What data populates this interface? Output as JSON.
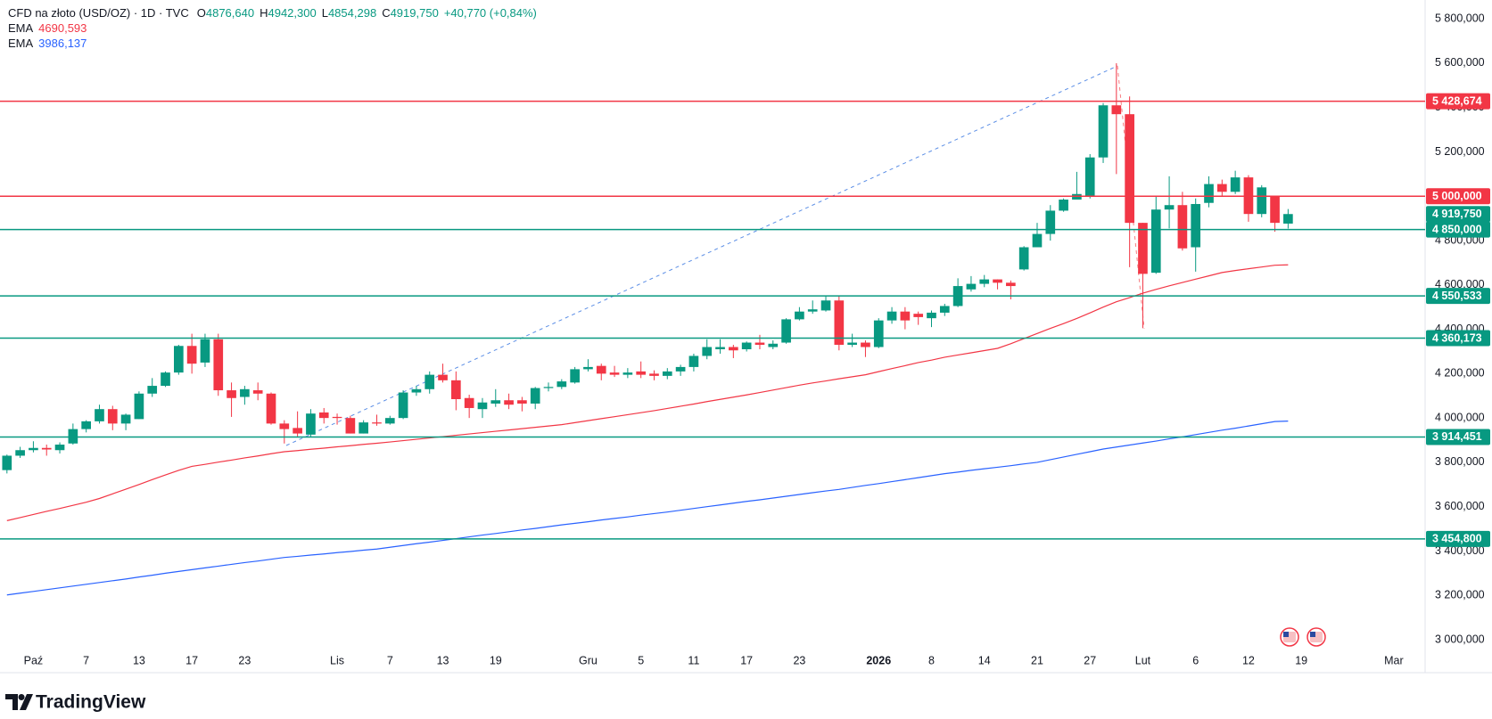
{
  "chart_data": {
    "type": "candlestick",
    "title": "CFD na złoto (USD/OZ) · 1D · TVC",
    "ohlc_legend": [
      {
        "key": "O",
        "text": "4876,640"
      },
      {
        "key": "H",
        "text": "4942,300"
      },
      {
        "key": "L",
        "text": "4854,298"
      },
      {
        "key": "C",
        "text": "4919,750"
      }
    ],
    "change_text": "+40,770 (+0,84%)",
    "up_color": "#089981",
    "down_color": "#f23645",
    "categories": [
      null,
      null,
      "Paź",
      null,
      null,
      null,
      "7",
      null,
      null,
      null,
      "13",
      null,
      null,
      null,
      "17",
      null,
      null,
      null,
      "23",
      null,
      null,
      null,
      null,
      null,
      null,
      "Lis",
      null,
      null,
      null,
      "7",
      null,
      null,
      null,
      "13",
      null,
      null,
      null,
      "19",
      null,
      null,
      null,
      null,
      null,
      null,
      "Gru",
      null,
      null,
      null,
      "5",
      null,
      null,
      null,
      "11",
      null,
      null,
      null,
      "17",
      null,
      null,
      null,
      "23",
      null,
      null,
      null,
      null,
      null,
      "2026",
      null,
      null,
      null,
      "8",
      null,
      null,
      null,
      "14",
      null,
      null,
      null,
      "21",
      null,
      null,
      null,
      "27",
      null,
      null,
      null,
      "Lut",
      null,
      null,
      null,
      "6",
      null,
      null,
      null,
      "12",
      null,
      null,
      null,
      "19",
      null,
      null,
      null,
      null,
      null,
      null,
      "Mar"
    ],
    "open": [
      3765,
      3830,
      3855,
      3865,
      3855,
      3885,
      3950,
      3985,
      4040,
      3975,
      3995,
      4110,
      4145,
      4205,
      4325,
      4250,
      4355,
      4125,
      4095,
      4125,
      4110,
      3975,
      3955,
      3925,
      4025,
      4005,
      4000,
      3930,
      3980,
      3975,
      4000,
      4115,
      4130,
      4195,
      4170,
      4090,
      4040,
      4065,
      4080,
      4080,
      4065,
      4135,
      4140,
      4160,
      4220,
      4235,
      4205,
      4195,
      4210,
      4200,
      4190,
      4210,
      4230,
      4280,
      4310,
      4320,
      4310,
      4340,
      4320,
      4340,
      4445,
      4480,
      4485,
      4530,
      4330,
      4340,
      4320,
      4440,
      4480,
      4470,
      4450,
      4475,
      4505,
      4580,
      4605,
      4625,
      4610,
      4670,
      4770,
      4830,
      4935,
      4985,
      5000,
      5175,
      5410,
      5370,
      4880,
      4655,
      4940,
      4960,
      4770,
      4970,
      5055,
      5020,
      5085,
      4920,
      5000,
      4876.64,
      null,
      null,
      null,
      null,
      null,
      null,
      null,
      null
    ],
    "high": [
      3835,
      3870,
      3895,
      3880,
      3890,
      3975,
      3990,
      4060,
      4055,
      4020,
      4120,
      4180,
      4210,
      4330,
      4380,
      4380,
      4380,
      4160,
      4145,
      4160,
      4115,
      3990,
      4030,
      4040,
      4045,
      4020,
      4010,
      3990,
      4015,
      4010,
      4125,
      4145,
      4210,
      4245,
      4210,
      4105,
      4090,
      4130,
      4110,
      4095,
      4140,
      4160,
      4175,
      4230,
      4265,
      4245,
      4235,
      4225,
      4255,
      4215,
      4225,
      4240,
      4290,
      4355,
      4355,
      4330,
      4345,
      4375,
      4350,
      4450,
      4500,
      4530,
      4550,
      4550,
      4380,
      4350,
      4450,
      4500,
      4500,
      4480,
      4485,
      4515,
      4630,
      4640,
      4645,
      4625,
      4620,
      4775,
      4880,
      4960,
      4990,
      5110,
      5190,
      5420,
      5600,
      5450,
      4880,
      5000,
      5090,
      5020,
      4990,
      5090,
      5075,
      5115,
      5095,
      5050,
      5000,
      4942.3,
      null,
      null,
      null,
      null,
      null,
      null,
      null,
      null
    ],
    "low": [
      3750,
      3820,
      3845,
      3830,
      3840,
      3880,
      3935,
      3975,
      3945,
      3945,
      3995,
      4095,
      4140,
      4195,
      4200,
      4230,
      4100,
      4005,
      4060,
      4080,
      3970,
      3885,
      3915,
      3915,
      3975,
      3970,
      3930,
      3930,
      3965,
      3970,
      3995,
      4100,
      4110,
      4160,
      4035,
      4000,
      4000,
      4050,
      4040,
      4030,
      4040,
      4120,
      4130,
      4155,
      4210,
      4170,
      4185,
      4180,
      4180,
      4170,
      4175,
      4190,
      4210,
      4265,
      4290,
      4270,
      4300,
      4310,
      4310,
      4335,
      4440,
      4470,
      4480,
      4305,
      4320,
      4275,
      4315,
      4425,
      4400,
      4420,
      4410,
      4460,
      4500,
      4570,
      4590,
      4580,
      4535,
      4665,
      4770,
      4800,
      4930,
      4990,
      4990,
      5150,
      5100,
      4680,
      4405,
      4650,
      4855,
      4755,
      4660,
      4950,
      5000,
      5010,
      4885,
      4905,
      4840,
      4854.298,
      null,
      null,
      null,
      null,
      null,
      null,
      null,
      null
    ],
    "close": [
      3830,
      3855,
      3865,
      3858,
      3880,
      3950,
      3985,
      4040,
      3975,
      4015,
      4110,
      4145,
      4205,
      4325,
      4245,
      4355,
      4125,
      4090,
      4130,
      4110,
      3975,
      3950,
      3930,
      4020,
      4000,
      4000,
      3930,
      3980,
      3975,
      4000,
      4115,
      4130,
      4195,
      4170,
      4085,
      4045,
      4070,
      4080,
      4060,
      4065,
      4135,
      4140,
      4165,
      4220,
      4230,
      4200,
      4195,
      4205,
      4195,
      4190,
      4210,
      4230,
      4280,
      4320,
      4320,
      4305,
      4340,
      4330,
      4335,
      4445,
      4480,
      4490,
      4530,
      4330,
      4340,
      4320,
      4440,
      4480,
      4440,
      4455,
      4475,
      4505,
      4595,
      4605,
      4625,
      4610,
      4595,
      4770,
      4830,
      4935,
      4985,
      5010,
      5175,
      5410,
      5370,
      4880,
      4650,
      4940,
      4960,
      4765,
      4965,
      5055,
      5020,
      5085,
      4920,
      5040,
      4880,
      4919.75,
      null,
      null,
      null,
      null,
      null,
      null,
      null,
      null
    ],
    "series": [
      {
        "name": "EMA",
        "color": "#f23645",
        "legend_value": "4690,593",
        "values": [
          3537,
          3551,
          3565,
          3579,
          3592,
          3606,
          3620,
          3637,
          3658,
          3679,
          3700,
          3722,
          3743,
          3764,
          3782,
          3791,
          3801,
          3810,
          3820,
          3829,
          3839,
          3848,
          3853,
          3859,
          3864,
          3870,
          3875,
          3881,
          3886,
          3892,
          3898,
          3904,
          3910,
          3916,
          3922,
          3928,
          3934,
          3940,
          3946,
          3952,
          3958,
          3964,
          3970,
          3979,
          3988,
          3997,
          4006,
          4015,
          4024,
          4033,
          4043,
          4053,
          4063,
          4074,
          4084,
          4094,
          4104,
          4115,
          4126,
          4137,
          4148,
          4158,
          4167,
          4177,
          4186,
          4195,
          4209,
          4223,
          4236,
          4250,
          4261,
          4274,
          4284,
          4294,
          4304,
          4314,
          4335,
          4358,
          4381,
          4404,
          4426,
          4449,
          4474,
          4500,
          4524,
          4543,
          4563,
          4580,
          4596,
          4611,
          4626,
          4641,
          4656,
          4665,
          4673,
          4681,
          4689,
          4690.593,
          null,
          null,
          null,
          null,
          null,
          null,
          null,
          null
        ]
      },
      {
        "name": "EMA",
        "color": "#2962ff",
        "legend_value": "3986,137",
        "values": [
          3202,
          3210,
          3218,
          3226,
          3234,
          3242,
          3250,
          3258,
          3266,
          3274,
          3283,
          3291,
          3300,
          3308,
          3316,
          3324,
          3332,
          3340,
          3348,
          3355,
          3363,
          3371,
          3376,
          3382,
          3387,
          3393,
          3398,
          3404,
          3409,
          3417,
          3425,
          3433,
          3440,
          3448,
          3456,
          3464,
          3472,
          3479,
          3487,
          3495,
          3502,
          3510,
          3518,
          3525,
          3532,
          3540,
          3547,
          3554,
          3562,
          3569,
          3576,
          3584,
          3592,
          3600,
          3608,
          3616,
          3624,
          3631,
          3639,
          3647,
          3655,
          3663,
          3671,
          3678,
          3687,
          3696,
          3704,
          3713,
          3722,
          3731,
          3740,
          3749,
          3756,
          3764,
          3771,
          3778,
          3785,
          3793,
          3800,
          3812,
          3824,
          3836,
          3848,
          3860,
          3869,
          3878,
          3887,
          3896,
          3906,
          3915,
          3925,
          3935,
          3945,
          3954,
          3964,
          3974,
          3984,
          3986.137,
          null,
          null,
          null,
          null,
          null,
          null,
          null,
          null
        ]
      }
    ],
    "levels": [
      {
        "value": 5428.674,
        "label": "5 428,674",
        "color": "#f23645"
      },
      {
        "value": 5000,
        "label": "5 000,000",
        "color": "#f23645"
      },
      {
        "value": 4850,
        "label": "4 850,000",
        "color": "#089981"
      },
      {
        "value": 4550.533,
        "label": "4 550,533",
        "color": "#089981"
      },
      {
        "value": 4360.173,
        "label": "4 360,173",
        "color": "#089981"
      },
      {
        "value": 3914.451,
        "label": "3 914,451",
        "color": "#089981"
      },
      {
        "value": 3454.8,
        "label": "3 454,800",
        "color": "#089981"
      }
    ],
    "last_price": {
      "value": 4919.75,
      "label": "4 919,750",
      "color": "#089981"
    },
    "ylim": [
      2960,
      5885
    ],
    "yticks": [
      {
        "value": 3000,
        "label": "3 000,000"
      },
      {
        "value": 3200,
        "label": "3 200,000"
      },
      {
        "value": 3400,
        "label": "3 400,000"
      },
      {
        "value": 3600,
        "label": "3 600,000"
      },
      {
        "value": 3800,
        "label": "3 800,000"
      },
      {
        "value": 4000,
        "label": "4 000,000"
      },
      {
        "value": 4200,
        "label": "4 200,000"
      },
      {
        "value": 4400,
        "label": "4 400,000"
      },
      {
        "value": 4600,
        "label": "4 600,000"
      },
      {
        "value": 4800,
        "label": "4 800,000"
      },
      {
        "value": 5000,
        "label": "5 000,000"
      },
      {
        "value": 5200,
        "label": "5 200,000"
      },
      {
        "value": 5400,
        "label": "5 400,000"
      },
      {
        "value": 5600,
        "label": "5 600,000"
      },
      {
        "value": 5800,
        "label": "5 800,000"
      }
    ],
    "grid": false,
    "watermark": "TradingView"
  }
}
